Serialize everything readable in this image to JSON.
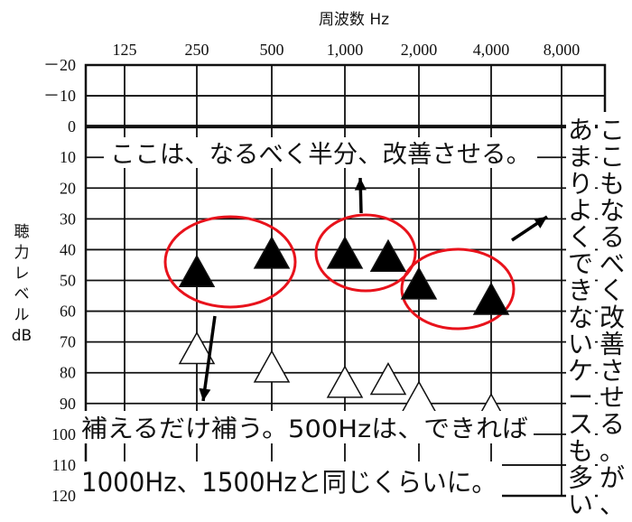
{
  "chart_data": {
    "type": "scatter",
    "title": "周波数 Hz",
    "ylabel_lines": [
      "聴",
      "力",
      "レ",
      "ベ",
      "ル",
      "dB"
    ],
    "x_ticks": [
      "125",
      "250",
      "500",
      "1,000",
      "2,000",
      "4,000",
      "8,000"
    ],
    "y_ticks": [
      "－20",
      "－10",
      "0",
      "10",
      "20",
      "30",
      "40",
      "50",
      "60",
      "70",
      "80",
      "90",
      "100",
      "110",
      "120"
    ],
    "ylim": [
      -20,
      120
    ],
    "y_inverted": true,
    "grid": true,
    "series": [
      {
        "marker": "filled-triangle",
        "points": [
          {
            "x": 250,
            "y": 47
          },
          {
            "x": 500,
            "y": 41
          },
          {
            "x": 1000,
            "y": 41
          },
          {
            "x": 1500,
            "y": 42
          },
          {
            "x": 2000,
            "y": 51
          },
          {
            "x": 4000,
            "y": 56
          }
        ]
      },
      {
        "marker": "open-triangle",
        "points": [
          {
            "x": 250,
            "y": 72
          },
          {
            "x": 500,
            "y": 78
          },
          {
            "x": 1000,
            "y": 83
          },
          {
            "x": 1500,
            "y": 82
          },
          {
            "x": 2000,
            "y": 88
          },
          {
            "x": 4000,
            "y": 92
          }
        ]
      }
    ],
    "annotations": {
      "top": "ここは、なるべく半分、改善させる。",
      "right_col1": "ここもなるべく改善させる。が、",
      "right_col2": "あまりよくできないケースも多い",
      "bottom_line1": "補えるだけ補う。500Hzは、できれば",
      "bottom_line2": "1000Hz、1500Hzと同じくらいに。"
    }
  }
}
